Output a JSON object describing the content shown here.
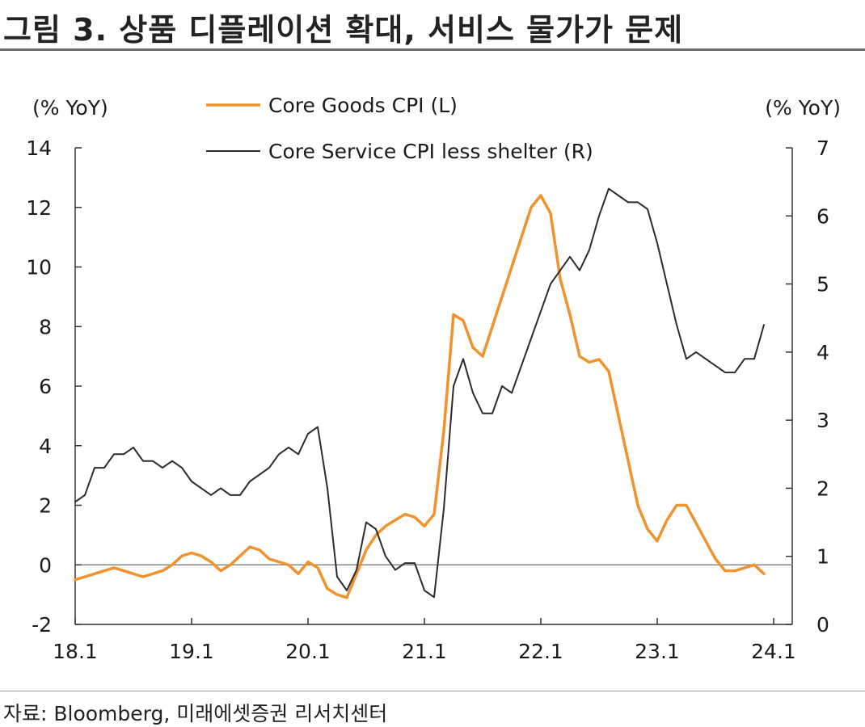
{
  "title": "그림 3. 상품 디플레이션 확대, 서비스 물가가 문제",
  "source": "자료: Bloomberg, 미래에셋증권 리서치센터",
  "colors": {
    "core_goods": "#f0922e",
    "core_service": "#2b2b2b",
    "axis": "#333333",
    "zero_line": "#888888"
  },
  "chart_data": {
    "type": "line",
    "y_left_label": "(% YoY)",
    "y_right_label": "(% YoY)",
    "y_left_lim": [
      -2,
      14
    ],
    "y_right_lim": [
      0,
      7
    ],
    "y_left_ticks": [
      "-2",
      "0",
      "2",
      "4",
      "6",
      "8",
      "10",
      "12",
      "14"
    ],
    "y_right_ticks": [
      "0",
      "1",
      "2",
      "3",
      "4",
      "5",
      "6",
      "7"
    ],
    "x_tick_labels": [
      "18.1",
      "19.1",
      "20.1",
      "21.1",
      "22.1",
      "23.1",
      "24.1"
    ],
    "grid": false,
    "legend_position": "top-center",
    "x_start_month": 0,
    "series": [
      {
        "name": "Core Goods CPI (L)",
        "axis": "left",
        "color": "#f0922e",
        "values": [
          -0.5,
          -0.4,
          -0.3,
          -0.2,
          -0.1,
          -0.2,
          -0.3,
          -0.4,
          -0.3,
          -0.2,
          0.0,
          0.3,
          0.4,
          0.3,
          0.1,
          -0.2,
          0.0,
          0.3,
          0.6,
          0.5,
          0.2,
          0.1,
          0.0,
          -0.3,
          0.1,
          -0.1,
          -0.8,
          -1.0,
          -1.1,
          -0.3,
          0.5,
          1.0,
          1.3,
          1.5,
          1.7,
          1.6,
          1.3,
          1.7,
          4.5,
          8.4,
          8.2,
          7.3,
          7.0,
          8.0,
          9.0,
          10.0,
          11.0,
          12.0,
          12.4,
          11.8,
          9.6,
          8.4,
          7.0,
          6.8,
          6.9,
          6.5,
          5.0,
          3.5,
          2.0,
          1.2,
          0.8,
          1.5,
          2.0,
          2.0,
          1.4,
          0.8,
          0.2,
          -0.2,
          -0.2,
          -0.1,
          0.0,
          -0.3
        ]
      },
      {
        "name": "Core Service CPI less shelter (R)",
        "axis": "right",
        "color": "#2b2b2b",
        "values": [
          1.8,
          1.9,
          2.3,
          2.3,
          2.5,
          2.5,
          2.6,
          2.4,
          2.4,
          2.3,
          2.4,
          2.3,
          2.1,
          2.0,
          1.9,
          2.0,
          1.9,
          1.9,
          2.1,
          2.2,
          2.3,
          2.5,
          2.6,
          2.5,
          2.8,
          2.9,
          2.0,
          0.7,
          0.5,
          0.8,
          1.5,
          1.4,
          1.0,
          0.8,
          0.9,
          0.9,
          0.5,
          0.4,
          1.7,
          3.5,
          3.9,
          3.4,
          3.1,
          3.1,
          3.5,
          3.4,
          3.8,
          4.2,
          4.6,
          5.0,
          5.2,
          5.4,
          5.2,
          5.5,
          6.0,
          6.4,
          6.3,
          6.2,
          6.2,
          6.1,
          5.6,
          5.0,
          4.4,
          3.9,
          4.0,
          3.9,
          3.8,
          3.7,
          3.7,
          3.9,
          3.9,
          4.4
        ]
      }
    ]
  }
}
